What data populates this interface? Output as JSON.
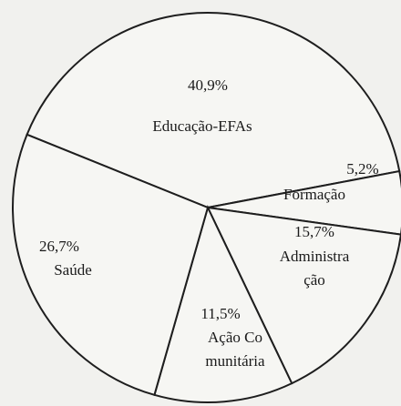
{
  "chart_data": {
    "type": "pie",
    "categories": [
      "Educação-EFAs",
      "Formação",
      "Administra\nção",
      "Ação Co\nmunitária",
      "Saúde"
    ],
    "values": [
      40.9,
      5.2,
      15.7,
      11.5,
      26.7
    ],
    "value_labels": [
      "40,9%",
      "5,2%",
      "15,7%",
      "11,5%",
      "26,7%"
    ],
    "color": "#f6f6f3"
  }
}
